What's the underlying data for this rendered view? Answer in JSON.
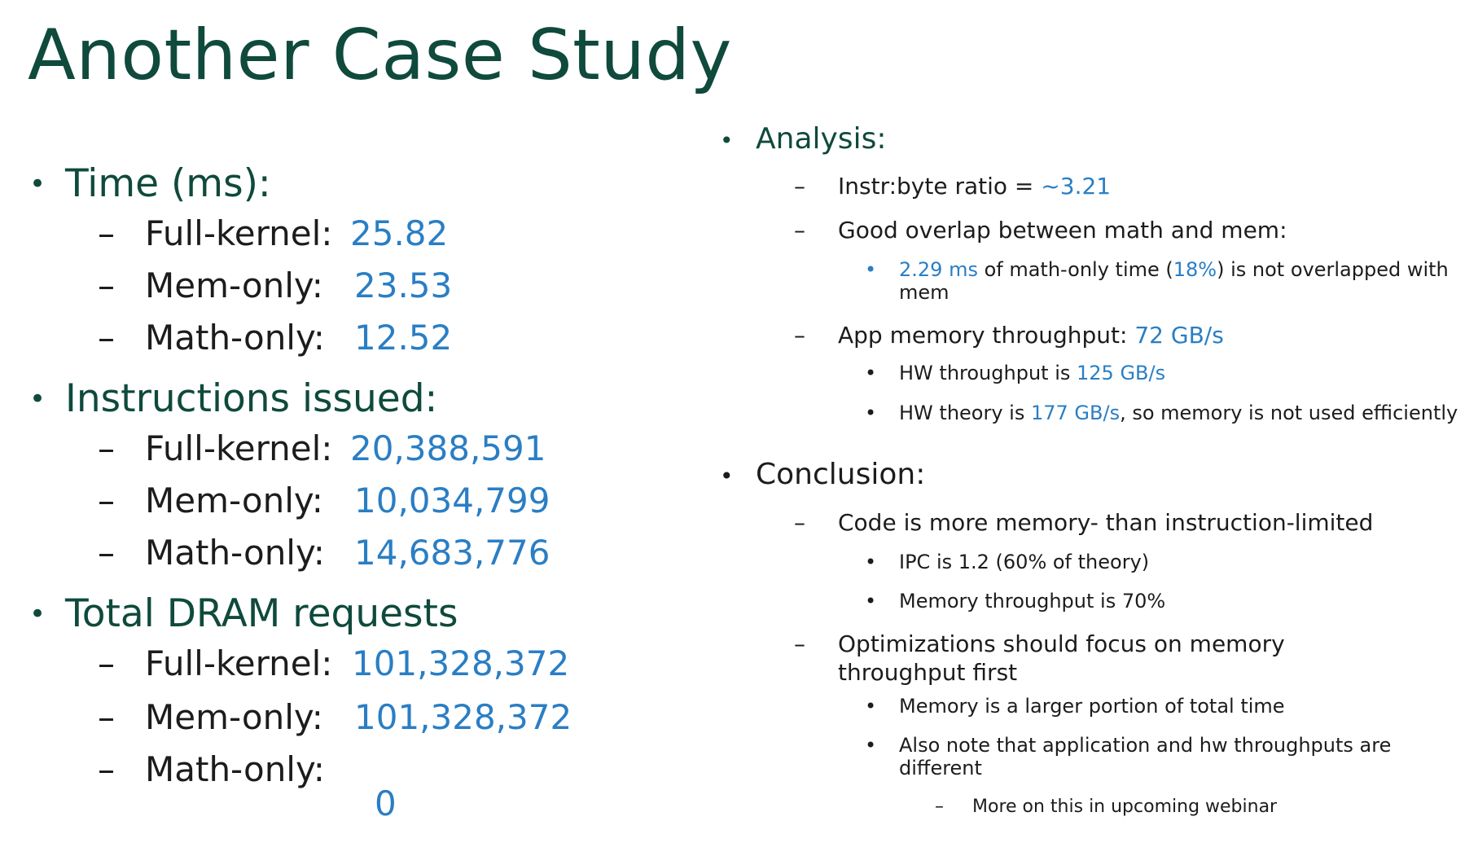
{
  "title": "Another Case Study",
  "left": {
    "sections": [
      {
        "heading": "Time (ms):",
        "rows": [
          {
            "label": "Full-kernel:",
            "value": "25.82"
          },
          {
            "label": "Mem-only:",
            "value": "23.53"
          },
          {
            "label": "Math-only:",
            "value": "12.52"
          }
        ]
      },
      {
        "heading": "Instructions issued:",
        "rows": [
          {
            "label": "Full-kernel:",
            "value": "20,388,591"
          },
          {
            "label": "Mem-only:",
            "value": "10,034,799"
          },
          {
            "label": "Math-only:",
            "value": "14,683,776"
          }
        ]
      },
      {
        "heading": "Total DRAM requests",
        "rows": [
          {
            "label": "Full-kernel:",
            "value": "101,328,372"
          },
          {
            "label": "Mem-only:",
            "value": "101,328,372"
          },
          {
            "label": "Math-only:",
            "value": "0"
          }
        ]
      }
    ]
  },
  "right": {
    "analysis": {
      "heading": "Analysis:",
      "ratio": {
        "label": "Instr:byte ratio = ",
        "value": "~3.21"
      },
      "overlap": {
        "text": "Good overlap between math and mem:",
        "sub": {
          "time": "2.29 ms",
          "mid": " of math-only time (",
          "pct": "18%",
          "end": ") is not overlapped with mem"
        }
      },
      "throughput": {
        "label": "App memory throughput: ",
        "value": "72 GB/s",
        "hw": {
          "label": "HW throughput is ",
          "value": "125 GB/s"
        },
        "theory": {
          "label": "HW theory is ",
          "value": "177 GB/s",
          "end": ", so memory is not used efficiently"
        }
      }
    },
    "conclusion": {
      "heading": "Conclusion:",
      "limited": "Code is more memory- than instruction-limited",
      "ipc": "IPC is 1.2 (60% of theory)",
      "mem_tp": "Memory throughput is  70%",
      "optim": "Optimizations should focus on memory throughput first",
      "larger": "Memory is a larger portion of total time",
      "note": "Also note that application and hw throughputs are different",
      "more": "More on this in upcoming webinar"
    }
  },
  "glyphs": {
    "bullet": "•",
    "dash": "–"
  },
  "colors": {
    "title": "#0f4a3c",
    "value": "#2a7ec4",
    "text": "#1c1c1c"
  }
}
